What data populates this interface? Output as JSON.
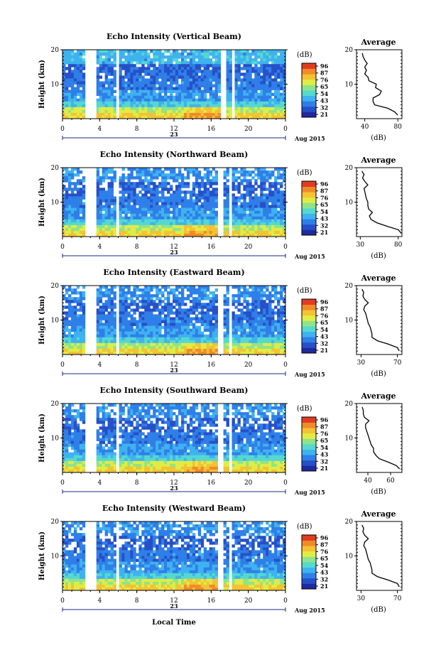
{
  "panels": [
    {
      "title": "Echo Intensity (Vertical Beam)",
      "avg_title": "Average",
      "avg_xticks": [
        "40",
        "80"
      ],
      "avg_xlim": [
        30,
        85
      ]
    },
    {
      "title": "Echo Intensity (Northward Beam)",
      "avg_title": "Average",
      "avg_xticks": [
        "30",
        "80"
      ],
      "avg_xlim": [
        25,
        85
      ]
    },
    {
      "title": "Echo Intensity (Eastward Beam)",
      "avg_title": "Average",
      "avg_xticks": [
        "30",
        "70"
      ],
      "avg_xlim": [
        25,
        75
      ]
    },
    {
      "title": "Echo Intensity (Southward Beam)",
      "avg_title": "Average",
      "avg_xticks": [
        "40",
        "60"
      ],
      "avg_xlim": [
        30,
        70
      ]
    },
    {
      "title": "Echo Intensity (Westward Beam)",
      "avg_title": "Average",
      "avg_xticks": [
        "30",
        "70"
      ],
      "avg_xlim": [
        25,
        75
      ]
    }
  ],
  "common": {
    "ylabel": "Height (km)",
    "yticks": [
      "20",
      "10"
    ],
    "xticks": [
      "0",
      "4",
      "8",
      "12",
      "16",
      "20",
      "0"
    ],
    "date_day": "23",
    "month_year": "Aug 2015",
    "cbar_unit": "(dB)",
    "cbar_ticks": [
      "96",
      "87",
      "76",
      "65",
      "54",
      "43",
      "32",
      "21"
    ],
    "avg_ylabel": "(dB)",
    "xlabel": "Local Time"
  },
  "colors": {
    "scale": [
      "#1f2a9e",
      "#2650c8",
      "#2f7fe8",
      "#3fb2f0",
      "#55d8d0",
      "#8fe48a",
      "#e0ec45",
      "#f4c234",
      "#f08a2a",
      "#e03c22"
    ]
  },
  "chart_data": [
    {
      "type": "heatmap",
      "title": "Echo Intensity (Vertical Beam)",
      "ylabel": "Height (km)",
      "xlabel": "",
      "ylim": [
        0,
        20
      ],
      "xlim": [
        0,
        24
      ],
      "colorbar": {
        "unit": "dB",
        "ticks": [
          96,
          87,
          76,
          65,
          54,
          43,
          32,
          21
        ]
      },
      "data_gaps_hours": [
        [
          2.3,
          3.6
        ],
        [
          5.7,
          6.1
        ],
        [
          17.1,
          17.6
        ],
        [
          18.1,
          18.5
        ]
      ],
      "average_profile": {
        "xlim": [
          30,
          85
        ],
        "height_km": [
          1,
          2,
          3,
          4,
          5,
          6,
          7,
          8,
          9,
          10,
          11,
          12,
          13,
          14,
          15,
          16,
          17,
          18,
          19
        ],
        "db": [
          80,
          76,
          68,
          52,
          50,
          50,
          58,
          60,
          53,
          54,
          45,
          44,
          40,
          42,
          40,
          43,
          40,
          38,
          37
        ]
      }
    },
    {
      "type": "heatmap",
      "title": "Echo Intensity (Northward Beam)",
      "ylabel": "Height (km)",
      "xlabel": "",
      "ylim": [
        0,
        20
      ],
      "xlim": [
        0,
        24
      ],
      "colorbar": {
        "unit": "dB",
        "ticks": [
          96,
          87,
          76,
          65,
          54,
          43,
          32,
          21
        ]
      },
      "data_gaps_hours": [
        [
          2.3,
          3.6
        ],
        [
          5.7,
          6.1
        ],
        [
          16.7,
          17.2
        ],
        [
          17.8,
          18.2
        ]
      ],
      "average_profile": {
        "xlim": [
          25,
          85
        ],
        "height_km": [
          1,
          2,
          3,
          4,
          5,
          6,
          7,
          8,
          9,
          10,
          11,
          12,
          13,
          14,
          15,
          16,
          17,
          18,
          19
        ],
        "db": [
          84,
          80,
          65,
          52,
          44,
          42,
          46,
          41,
          40,
          40,
          38,
          37,
          36,
          35,
          40,
          36,
          33,
          35,
          32
        ]
      }
    },
    {
      "type": "heatmap",
      "title": "Echo Intensity (Eastward Beam)",
      "ylabel": "Height (km)",
      "xlabel": "",
      "ylim": [
        0,
        20
      ],
      "xlim": [
        0,
        24
      ],
      "colorbar": {
        "unit": "dB",
        "ticks": [
          96,
          87,
          76,
          65,
          54,
          43,
          32,
          21
        ]
      },
      "data_gaps_hours": [
        [
          2.3,
          3.6
        ],
        [
          5.7,
          6.1
        ],
        [
          16.7,
          17.2
        ],
        [
          17.8,
          18.2
        ]
      ],
      "average_profile": {
        "xlim": [
          25,
          75
        ],
        "height_km": [
          1,
          2,
          3,
          4,
          5,
          6,
          7,
          8,
          9,
          10,
          11,
          12,
          13,
          14,
          15,
          16,
          17,
          18,
          19
        ],
        "db": [
          72,
          70,
          60,
          48,
          42,
          42,
          41,
          40,
          38,
          37,
          36,
          35,
          33,
          34,
          38,
          34,
          32,
          33,
          31
        ]
      }
    },
    {
      "type": "heatmap",
      "title": "Echo Intensity (Southward Beam)",
      "ylabel": "Height (km)",
      "xlabel": "",
      "ylim": [
        0,
        20
      ],
      "xlim": [
        0,
        24
      ],
      "colorbar": {
        "unit": "dB",
        "ticks": [
          96,
          87,
          76,
          65,
          54,
          43,
          32,
          21
        ]
      },
      "data_gaps_hours": [
        [
          2.3,
          3.6
        ],
        [
          5.7,
          6.1
        ],
        [
          16.7,
          17.2
        ],
        [
          17.8,
          18.2
        ]
      ],
      "average_profile": {
        "xlim": [
          30,
          70
        ],
        "height_km": [
          1,
          2,
          3,
          4,
          5,
          6,
          7,
          8,
          9,
          10,
          11,
          12,
          13,
          14,
          15,
          16,
          17,
          18,
          19
        ],
        "db": [
          68,
          65,
          58,
          50,
          47,
          45,
          45,
          43,
          42,
          41,
          40,
          39,
          38,
          38,
          41,
          37,
          36,
          36,
          35
        ]
      }
    },
    {
      "type": "heatmap",
      "title": "Echo Intensity (Westward Beam)",
      "ylabel": "Height (km)",
      "xlabel": "Local Time",
      "ylim": [
        0,
        20
      ],
      "xlim": [
        0,
        24
      ],
      "colorbar": {
        "unit": "dB",
        "ticks": [
          96,
          87,
          76,
          65,
          54,
          43,
          32,
          21
        ]
      },
      "data_gaps_hours": [
        [
          2.3,
          3.6
        ],
        [
          5.7,
          6.1
        ],
        [
          16.7,
          17.2
        ],
        [
          17.8,
          18.2
        ]
      ],
      "average_profile": {
        "xlim": [
          25,
          75
        ],
        "height_km": [
          1,
          2,
          3,
          4,
          5,
          6,
          7,
          8,
          9,
          10,
          11,
          12,
          13,
          14,
          15,
          16,
          17,
          18,
          19
        ],
        "db": [
          72,
          70,
          60,
          48,
          42,
          42,
          41,
          40,
          38,
          37,
          36,
          35,
          33,
          34,
          38,
          34,
          32,
          33,
          31
        ]
      }
    }
  ]
}
